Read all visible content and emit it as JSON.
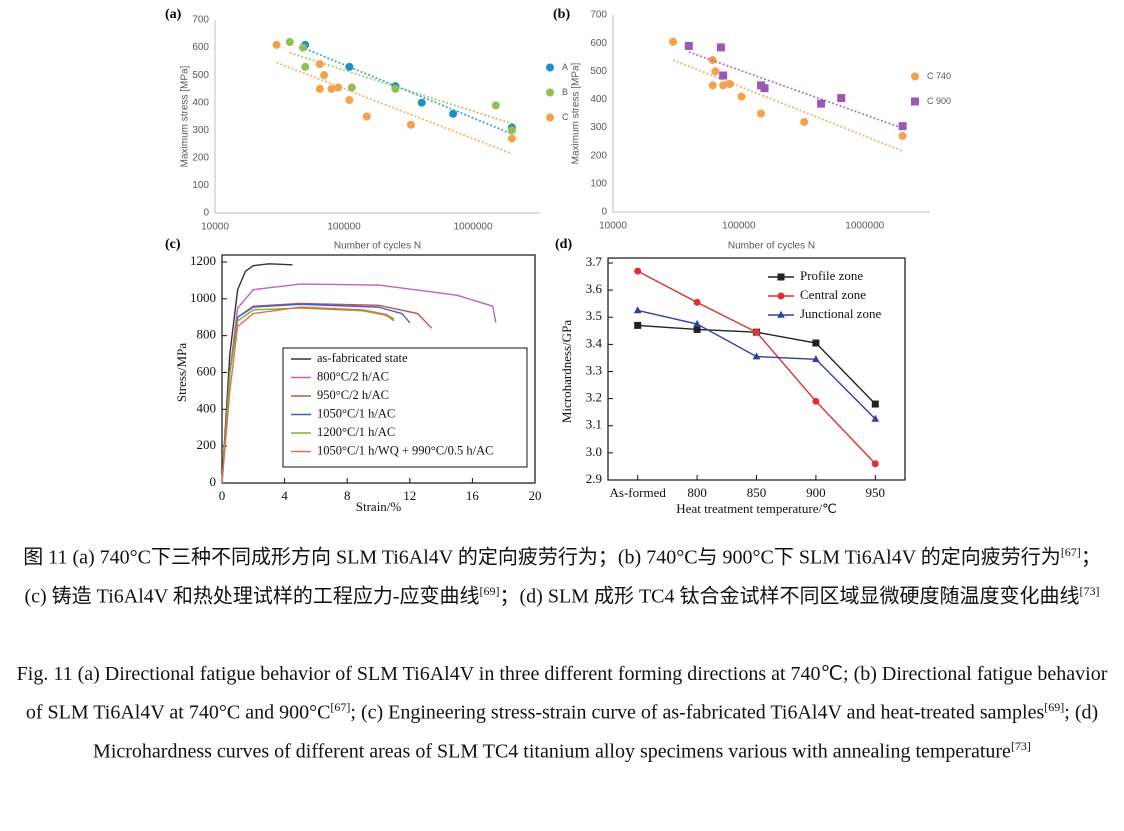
{
  "chart_data": [
    {
      "type": "scatter",
      "panel": "(a)",
      "xlabel": "Number of cycles N",
      "ylabel": "Maximum stress [MPa]",
      "xlog": true,
      "xlim": [
        10000,
        3300000
      ],
      "xticks": [
        10000,
        100000,
        1000000
      ],
      "ylim": [
        0,
        700
      ],
      "yticks": [
        0,
        100,
        200,
        300,
        400,
        500,
        600,
        700
      ],
      "trendline": true,
      "legend": "right",
      "series": [
        {
          "name": "A",
          "color": "#1f8fc8",
          "marker": "circle",
          "x": [
            50000,
            110000,
            250000,
            400000,
            700000,
            2000000
          ],
          "values": [
            610,
            530,
            460,
            400,
            360,
            310
          ]
        },
        {
          "name": "B",
          "color": "#8dc153",
          "marker": "circle",
          "x": [
            38000,
            48000,
            50000,
            115000,
            250000,
            1500000,
            2000000
          ],
          "values": [
            620,
            600,
            530,
            455,
            450,
            390,
            300
          ]
        },
        {
          "name": "C",
          "color": "#f5a04a",
          "marker": "circle",
          "x": [
            30000,
            65000,
            70000,
            65000,
            80000,
            90000,
            110000,
            150000,
            330000,
            2000000
          ],
          "values": [
            610,
            540,
            500,
            450,
            450,
            455,
            410,
            350,
            320,
            270
          ]
        }
      ]
    },
    {
      "type": "scatter",
      "panel": "(b)",
      "xlabel": "Number of cycles N",
      "ylabel": "Maximum stress [MPa]",
      "xlog": true,
      "xlim": [
        10000,
        3300000
      ],
      "xticks": [
        10000,
        100000,
        1000000
      ],
      "ylim": [
        0,
        700
      ],
      "yticks": [
        0,
        100,
        200,
        300,
        400,
        500,
        600,
        700
      ],
      "trendline": true,
      "legend": "right",
      "series": [
        {
          "name": "C 740",
          "color": "#f5a04a",
          "marker": "circle",
          "x": [
            30000,
            62000,
            65000,
            62000,
            75000,
            85000,
            105000,
            150000,
            330000,
            2000000
          ],
          "values": [
            605,
            540,
            500,
            450,
            450,
            455,
            410,
            350,
            320,
            270
          ]
        },
        {
          "name": "C 900",
          "color": "#9b59b6",
          "marker": "square",
          "x": [
            40000,
            72000,
            75000,
            150000,
            160000,
            450000,
            650000,
            2000000
          ],
          "values": [
            590,
            585,
            485,
            450,
            440,
            385,
            405,
            305
          ]
        }
      ]
    },
    {
      "type": "line",
      "panel": "(c)",
      "xlabel": "Strain/%",
      "ylabel": "Stress/MPa",
      "frame": true,
      "xlim": [
        0,
        20
      ],
      "xticks": [
        0,
        4,
        8,
        12,
        16,
        20
      ],
      "ylim": [
        0,
        1200
      ],
      "yticks": [
        0,
        200,
        400,
        600,
        800,
        1000,
        1200
      ],
      "legend": "lower right",
      "series": [
        {
          "name": "as-fabricated state",
          "color": "#333333",
          "x": [
            0,
            0.5,
            1,
            1.5,
            2,
            3,
            4.5
          ],
          "values": [
            0,
            700,
            1050,
            1150,
            1180,
            1190,
            1185
          ]
        },
        {
          "name": "800°C/2 h/AC",
          "color": "#c060c0",
          "x": [
            0,
            0.5,
            1,
            2,
            5,
            10,
            15,
            17.3,
            17.5
          ],
          "values": [
            0,
            600,
            950,
            1050,
            1080,
            1075,
            1020,
            960,
            870
          ]
        },
        {
          "name": "950°C/2 h/AC",
          "color": "#c0504d",
          "x": [
            0,
            0.5,
            1,
            2,
            5,
            10,
            12.5,
            13.4
          ],
          "values": [
            0,
            600,
            900,
            960,
            975,
            965,
            920,
            840
          ]
        },
        {
          "name": "1050°C/1 h/AC",
          "color": "#4060c0",
          "x": [
            0,
            0.5,
            1,
            2,
            5,
            10,
            11.5,
            12
          ],
          "values": [
            0,
            600,
            900,
            955,
            970,
            955,
            920,
            870
          ]
        },
        {
          "name": "1200°C/1 h/AC",
          "color": "#7ab030",
          "x": [
            0,
            0.5,
            1,
            2,
            5,
            9,
            10.5,
            11
          ],
          "values": [
            0,
            600,
            880,
            940,
            950,
            935,
            910,
            880
          ]
        },
        {
          "name": "1050°C/1 h/WQ + 990°C/0.5 h/AC",
          "color": "#e07050",
          "x": [
            0,
            0.5,
            1,
            2,
            5,
            9,
            10.5,
            11
          ],
          "values": [
            0,
            500,
            850,
            920,
            955,
            940,
            915,
            890
          ]
        }
      ]
    },
    {
      "type": "line",
      "panel": "(d)",
      "xlabel": "Heat treatment temperature/℃",
      "ylabel": "Microhardness/GPa",
      "frame": true,
      "categories": [
        "As-formed",
        "800",
        "850",
        "900",
        "950"
      ],
      "ylim": [
        2.9,
        3.7
      ],
      "yticks": [
        2.9,
        {
          "value": 3,
          "label": "3.0"
        },
        3.1,
        3.2,
        3.3,
        3.4,
        3.5,
        3.6,
        3.7
      ],
      "legend": "upper right",
      "series": [
        {
          "name": "Profile zone",
          "color": "#222222",
          "marker": "square",
          "values": [
            3.47,
            3.455,
            3.445,
            3.405,
            3.18
          ]
        },
        {
          "name": "Central zone",
          "color": "#e03030",
          "marker": "circle",
          "values": [
            3.67,
            3.555,
            3.445,
            3.19,
            2.96
          ]
        },
        {
          "name": "Junctional zone",
          "color": "#3040a0",
          "marker": "triangle",
          "values": [
            3.525,
            3.475,
            3.355,
            3.345,
            3.125
          ]
        }
      ]
    }
  ],
  "caption": {
    "zh": [
      {
        "text": "图 11 (a) 740°C下三种不同成形方向 SLM Ti6Al4V 的定向疲劳行为；(b) 740°C与 900°C下 SLM Ti6Al4V 的定向疲劳行为"
      },
      {
        "sup": "[67]"
      },
      {
        "text": "；(c) 铸造 Ti6Al4V 和热处理试样的工程应力-应变曲线"
      },
      {
        "sup": "[69]"
      },
      {
        "text": "；(d) SLM 成形 TC4 钛合金试样不同区域显微硬度随温度变化曲线"
      },
      {
        "sup": "[73]"
      }
    ],
    "en": [
      {
        "text": "Fig. 11 (a) Directional fatigue behavior of SLM Ti6Al4V in three different forming directions at 740℃; (b) Directional fatigue behavior of SLM Ti6Al4V at 740°C and 900°C"
      },
      {
        "sup": "[67]"
      },
      {
        "text": "; (c) Engineering stress-strain curve of as-fabricated Ti6Al4V and heat-treated samples"
      },
      {
        "sup": "[69]"
      },
      {
        "text": "; (d) Microhardness curves of different areas of SLM TC4 titanium alloy specimens various with annealing temperature"
      },
      {
        "sup": "[73]"
      }
    ]
  }
}
